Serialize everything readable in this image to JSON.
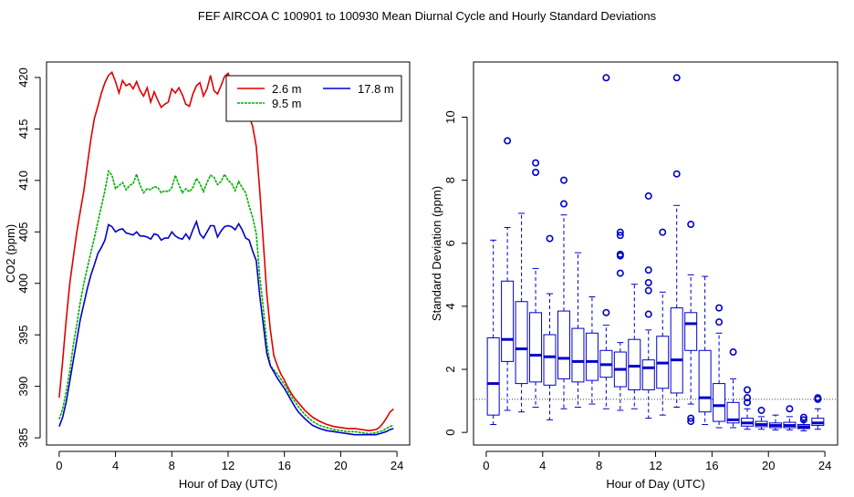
{
  "title": "FEF   AIRCOA C   100901 to 100930   Mean Diurnal Cycle and Hourly Standard Deviations",
  "chart_data": [
    {
      "type": "line",
      "xlabel": "Hour of Day (UTC)",
      "ylabel": "CO2 (ppm)",
      "xlim": [
        0,
        24
      ],
      "ylim": [
        385,
        421
      ],
      "xticks": [
        0,
        4,
        8,
        12,
        16,
        20,
        24
      ],
      "yticks": [
        385,
        390,
        395,
        400,
        405,
        410,
        415,
        420
      ],
      "legend": {
        "position": "top-right",
        "entries": [
          "2.6 m",
          "9.5 m",
          "17.8 m"
        ]
      },
      "series": [
        {
          "name": "2.6 m",
          "color": "#e00000",
          "x": [
            0,
            0.25,
            0.5,
            0.75,
            1.0,
            1.25,
            1.5,
            1.75,
            2.0,
            2.25,
            2.5,
            2.75,
            3.0,
            3.25,
            3.5,
            3.75,
            4.0,
            4.25,
            4.5,
            4.75,
            5.0,
            5.25,
            5.5,
            5.75,
            6.0,
            6.25,
            6.5,
            6.75,
            7.0,
            7.25,
            7.5,
            7.75,
            8.0,
            8.25,
            8.5,
            8.75,
            9.0,
            9.25,
            9.5,
            9.75,
            10.0,
            10.25,
            10.5,
            10.75,
            11.0,
            11.25,
            11.5,
            11.75,
            12.0,
            12.25,
            12.5,
            12.75,
            13.0,
            13.25,
            13.5,
            13.75,
            14.0,
            14.25,
            14.5,
            14.75,
            15.0,
            15.25,
            15.5,
            15.75,
            16.0,
            16.25,
            16.5,
            16.75,
            17.0,
            17.5,
            18.0,
            18.5,
            19.0,
            19.5,
            20.0,
            20.5,
            21.0,
            21.5,
            22.0,
            22.5,
            22.75,
            23.0,
            23.25,
            23.5,
            23.75
          ],
          "y": [
            388.9,
            392.5,
            396.5,
            400.0,
            402.5,
            405.0,
            407.0,
            409.0,
            411.5,
            414.0,
            416.0,
            417.2,
            418.5,
            419.5,
            420.2,
            420.5,
            419.6,
            418.5,
            419.7,
            419.2,
            419.4,
            418.9,
            419.6,
            418.7,
            418.2,
            419.0,
            417.6,
            418.6,
            417.8,
            417.1,
            417.4,
            417.6,
            418.9,
            418.5,
            419.0,
            418.3,
            417.4,
            417.2,
            418.4,
            419.2,
            419.5,
            418.2,
            418.9,
            420.2,
            418.7,
            418.4,
            419.2,
            420.1,
            420.4,
            419.5,
            418.4,
            419.6,
            418.6,
            418.2,
            416.3,
            415.2,
            413.3,
            409.0,
            404.0,
            399.0,
            395.5,
            393.0,
            392.0,
            391.2,
            390.6,
            389.9,
            389.3,
            388.8,
            388.4,
            387.6,
            387.0,
            386.6,
            386.3,
            386.1,
            386.0,
            385.9,
            385.9,
            385.8,
            385.7,
            385.8,
            386.0,
            386.4,
            386.9,
            387.5,
            387.8
          ]
        },
        {
          "name": "9.5 m",
          "color": "#00b000",
          "x": [
            0,
            0.25,
            0.5,
            0.75,
            1.0,
            1.25,
            1.5,
            1.75,
            2.0,
            2.25,
            2.5,
            2.75,
            3.0,
            3.25,
            3.5,
            3.75,
            4.0,
            4.25,
            4.5,
            4.75,
            5.0,
            5.25,
            5.5,
            5.75,
            6.0,
            6.25,
            6.5,
            6.75,
            7.0,
            7.25,
            7.5,
            7.75,
            8.0,
            8.25,
            8.5,
            8.75,
            9.0,
            9.25,
            9.5,
            9.75,
            10.0,
            10.25,
            10.5,
            10.75,
            11.0,
            11.25,
            11.5,
            11.75,
            12.0,
            12.25,
            12.5,
            12.75,
            13.0,
            13.25,
            13.5,
            13.75,
            14.0,
            14.25,
            14.5,
            14.75,
            15.0,
            15.25,
            15.5,
            15.75,
            16.0,
            16.25,
            16.5,
            16.75,
            17.0,
            17.5,
            18.0,
            18.5,
            19.0,
            19.5,
            20.0,
            20.5,
            21.0,
            21.5,
            22.0,
            22.5,
            22.75,
            23.0,
            23.25,
            23.5,
            23.75
          ],
          "y": [
            386.8,
            387.8,
            389.5,
            391.5,
            394.0,
            396.0,
            398.2,
            400.0,
            401.5,
            403.0,
            404.4,
            406.0,
            407.5,
            409.0,
            410.9,
            410.5,
            409.2,
            409.5,
            409.8,
            409.1,
            409.5,
            409.7,
            410.6,
            409.5,
            408.8,
            409.2,
            409.1,
            409.4,
            409.3,
            408.8,
            409.0,
            408.9,
            409.3,
            410.5,
            409.6,
            408.8,
            409.2,
            408.9,
            409.3,
            410.2,
            409.7,
            408.9,
            409.8,
            410.5,
            410.3,
            409.6,
            409.9,
            410.6,
            410.0,
            409.7,
            409.0,
            409.9,
            409.3,
            408.8,
            407.5,
            406.4,
            404.8,
            400.6,
            397.6,
            394.2,
            392.0,
            391.6,
            391.2,
            390.7,
            390.2,
            389.6,
            389.0,
            388.5,
            388.0,
            387.2,
            386.6,
            386.2,
            386.0,
            385.8,
            385.7,
            385.6,
            385.6,
            385.5,
            385.4,
            385.5,
            385.6,
            385.7,
            385.9,
            386.1,
            386.2
          ]
        },
        {
          "name": "17.8 m",
          "color": "#0000cc",
          "x": [
            0,
            0.25,
            0.5,
            0.75,
            1.0,
            1.25,
            1.5,
            1.75,
            2.0,
            2.25,
            2.5,
            2.75,
            3.0,
            3.25,
            3.5,
            3.75,
            4.0,
            4.25,
            4.5,
            4.75,
            5.0,
            5.25,
            5.5,
            5.75,
            6.0,
            6.25,
            6.5,
            6.75,
            7.0,
            7.25,
            7.5,
            7.75,
            8.0,
            8.25,
            8.5,
            8.75,
            9.0,
            9.25,
            9.5,
            9.75,
            10.0,
            10.25,
            10.5,
            10.75,
            11.0,
            11.25,
            11.5,
            11.75,
            12.0,
            12.25,
            12.5,
            12.75,
            13.0,
            13.25,
            13.5,
            13.75,
            14.0,
            14.25,
            14.5,
            14.75,
            15.0,
            15.25,
            15.5,
            15.75,
            16.0,
            16.25,
            16.5,
            16.75,
            17.0,
            17.5,
            18.0,
            18.5,
            19.0,
            19.5,
            20.0,
            20.5,
            21.0,
            21.5,
            22.0,
            22.5,
            22.75,
            23.0,
            23.25,
            23.5,
            23.75
          ],
          "y": [
            386.1,
            387.0,
            388.5,
            390.5,
            392.5,
            394.5,
            396.5,
            398.0,
            399.5,
            400.8,
            401.8,
            402.9,
            403.5,
            404.2,
            405.7,
            405.5,
            405.0,
            405.2,
            405.3,
            404.9,
            404.8,
            404.7,
            405.0,
            404.6,
            404.6,
            404.5,
            404.3,
            404.8,
            404.7,
            404.2,
            404.4,
            404.4,
            405.0,
            404.6,
            404.4,
            404.3,
            404.8,
            404.3,
            405.2,
            406.0,
            404.8,
            404.4,
            405.0,
            405.6,
            405.6,
            404.5,
            405.1,
            405.5,
            405.6,
            405.5,
            405.2,
            405.8,
            405.2,
            404.4,
            404.2,
            403.1,
            402.2,
            398.8,
            396.0,
            393.2,
            392.0,
            391.4,
            390.8,
            390.3,
            389.8,
            389.2,
            388.6,
            388.0,
            387.5,
            386.8,
            386.2,
            385.9,
            385.7,
            385.6,
            385.5,
            385.4,
            385.3,
            385.3,
            385.3,
            385.3,
            385.4,
            385.5,
            385.6,
            385.8,
            385.9
          ]
        }
      ]
    },
    {
      "type": "box",
      "xlabel": "Hour of Day (UTC)",
      "ylabel": "Standard Deviation (ppm)",
      "xlim": [
        0,
        24
      ],
      "ylim": [
        0,
        11.3
      ],
      "xticks": [
        0,
        4,
        8,
        12,
        16,
        20,
        24
      ],
      "yticks": [
        0,
        2,
        4,
        6,
        8,
        10
      ],
      "reference_line": 1.05,
      "color": "#0000cc",
      "boxes": [
        {
          "hour": 0.5,
          "whisker_low": 0.25,
          "q1": 0.55,
          "median": 1.55,
          "q3": 3.0,
          "whisker_high": 6.1,
          "outliers": []
        },
        {
          "hour": 1.5,
          "whisker_low": 0.7,
          "q1": 2.25,
          "median": 2.95,
          "q3": 4.8,
          "whisker_high": 6.5,
          "outliers": [
            9.25
          ]
        },
        {
          "hour": 2.5,
          "whisker_low": 0.65,
          "q1": 1.55,
          "median": 2.65,
          "q3": 4.15,
          "whisker_high": 6.95,
          "outliers": []
        },
        {
          "hour": 3.5,
          "whisker_low": 0.8,
          "q1": 1.6,
          "median": 2.45,
          "q3": 3.8,
          "whisker_high": 5.2,
          "outliers": [
            8.25,
            8.55
          ]
        },
        {
          "hour": 4.5,
          "whisker_low": 0.4,
          "q1": 1.5,
          "median": 2.4,
          "q3": 3.1,
          "whisker_high": 4.4,
          "outliers": [
            6.15
          ]
        },
        {
          "hour": 5.5,
          "whisker_low": 0.75,
          "q1": 1.7,
          "median": 2.35,
          "q3": 3.85,
          "whisker_high": 6.9,
          "outliers": [
            7.25,
            8.0
          ]
        },
        {
          "hour": 6.5,
          "whisker_low": 0.8,
          "q1": 1.6,
          "median": 2.25,
          "q3": 3.3,
          "whisker_high": 5.7,
          "outliers": []
        },
        {
          "hour": 7.5,
          "whisker_low": 0.9,
          "q1": 1.65,
          "median": 2.25,
          "q3": 3.15,
          "whisker_high": 4.3,
          "outliers": []
        },
        {
          "hour": 8.5,
          "whisker_low": 0.75,
          "q1": 1.75,
          "median": 2.15,
          "q3": 2.6,
          "whisker_high": 3.4,
          "outliers": [
            3.8,
            11.25
          ]
        },
        {
          "hour": 9.5,
          "whisker_low": 0.7,
          "q1": 1.45,
          "median": 2.0,
          "q3": 2.55,
          "whisker_high": 2.85,
          "outliers": [
            5.05,
            5.6,
            6.25,
            6.35,
            5.65
          ]
        },
        {
          "hour": 10.5,
          "whisker_low": 0.75,
          "q1": 1.35,
          "median": 2.1,
          "q3": 2.95,
          "whisker_high": 4.7,
          "outliers": []
        },
        {
          "hour": 11.5,
          "whisker_low": 0.45,
          "q1": 1.35,
          "median": 2.05,
          "q3": 2.3,
          "whisker_high": 3.25,
          "outliers": [
            3.75,
            4.5,
            4.75,
            5.15,
            7.5
          ]
        },
        {
          "hour": 12.5,
          "whisker_low": 0.55,
          "q1": 1.4,
          "median": 2.2,
          "q3": 3.05,
          "whisker_high": 4.45,
          "outliers": [
            6.35
          ]
        },
        {
          "hour": 13.5,
          "whisker_low": 0.8,
          "q1": 1.25,
          "median": 2.3,
          "q3": 3.95,
          "whisker_high": 7.2,
          "outliers": [
            8.2,
            11.25
          ]
        },
        {
          "hour": 14.5,
          "whisker_low": 0.9,
          "q1": 2.6,
          "median": 3.45,
          "q3": 3.8,
          "whisker_high": 5.0,
          "outliers": [
            0.35,
            0.45,
            6.6
          ]
        },
        {
          "hour": 15.5,
          "whisker_low": 0.25,
          "q1": 0.65,
          "median": 1.1,
          "q3": 2.6,
          "whisker_high": 4.95,
          "outliers": []
        },
        {
          "hour": 16.5,
          "whisker_low": 0.15,
          "q1": 0.35,
          "median": 0.85,
          "q3": 1.55,
          "whisker_high": 3.15,
          "outliers": [
            3.5,
            3.95
          ]
        },
        {
          "hour": 17.5,
          "whisker_low": 0.15,
          "q1": 0.3,
          "median": 0.4,
          "q3": 0.95,
          "whisker_high": 1.7,
          "outliers": [
            2.55
          ]
        },
        {
          "hour": 18.5,
          "whisker_low": 0.1,
          "q1": 0.2,
          "median": 0.3,
          "q3": 0.45,
          "whisker_high": 0.75,
          "outliers": [
            0.95,
            1.1,
            1.35
          ]
        },
        {
          "hour": 19.5,
          "whisker_low": 0.1,
          "q1": 0.18,
          "median": 0.25,
          "q3": 0.35,
          "whisker_high": 0.5,
          "outliers": [
            0.7
          ]
        },
        {
          "hour": 20.5,
          "whisker_low": 0.08,
          "q1": 0.15,
          "median": 0.22,
          "q3": 0.3,
          "whisker_high": 0.55,
          "outliers": []
        },
        {
          "hour": 21.5,
          "whisker_low": 0.08,
          "q1": 0.15,
          "median": 0.22,
          "q3": 0.32,
          "whisker_high": 0.5,
          "outliers": [
            0.75
          ]
        },
        {
          "hour": 22.5,
          "whisker_low": 0.05,
          "q1": 0.12,
          "median": 0.18,
          "q3": 0.25,
          "whisker_high": 0.35,
          "outliers": [
            0.4,
            0.48
          ]
        },
        {
          "hour": 23.5,
          "whisker_low": 0.1,
          "q1": 0.22,
          "median": 0.3,
          "q3": 0.45,
          "whisker_high": 0.75,
          "outliers": [
            1.05,
            1.1
          ]
        }
      ]
    }
  ]
}
